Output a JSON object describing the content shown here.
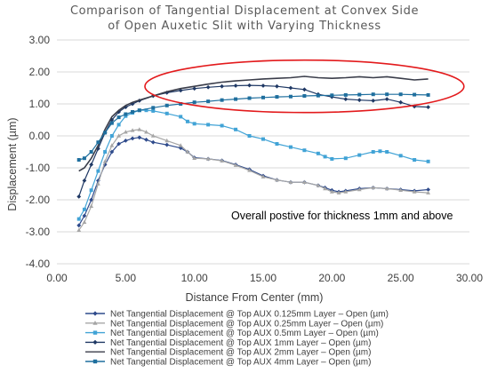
{
  "chart_data": {
    "type": "line",
    "title_lines": [
      "Comparison of Tangential Displacement at Convex Side",
      "of Open Auxetic Slit with Varying Thickness"
    ],
    "xlabel": "Distance From Center (mm)",
    "ylabel": "Displacement (µm)",
    "xlim": [
      0,
      30
    ],
    "ylim": [
      -4,
      3
    ],
    "x_ticks": [
      "0.00",
      "5.00",
      "10.00",
      "15.00",
      "20.00",
      "25.00",
      "30.00"
    ],
    "y_ticks": [
      "3.00",
      "2.00",
      "1.00",
      "0.00",
      "-1.00",
      "-2.00",
      "-3.00",
      "-4.00"
    ],
    "grid": "horizontal",
    "legend_position": "bottom",
    "annotation": "Overall postive for thickness 1mm and above",
    "highlight_ellipse": {
      "center": [
        18,
        1.55
      ],
      "x_radius": 11.6,
      "y_radius": 0.82,
      "color": "#e31a1c"
    },
    "series": [
      {
        "name": "Net Tangential Displacement @ Top AUX 0.125mm Layer – Open (µm)",
        "color": "#2f4b8c",
        "marker": "diamond",
        "points": [
          [
            1.6,
            -2.8
          ],
          [
            2.0,
            -2.5
          ],
          [
            2.5,
            -2.0
          ],
          [
            3.0,
            -1.4
          ],
          [
            3.5,
            -0.9
          ],
          [
            4.0,
            -0.5
          ],
          [
            4.5,
            -0.25
          ],
          [
            5.0,
            -0.15
          ],
          [
            5.5,
            -0.08
          ],
          [
            6.0,
            -0.05
          ],
          [
            6.5,
            -0.12
          ],
          [
            7.0,
            -0.2
          ],
          [
            8.0,
            -0.28
          ],
          [
            9.0,
            -0.38
          ],
          [
            9.5,
            -0.5
          ],
          [
            10.0,
            -0.68
          ],
          [
            11.0,
            -0.72
          ],
          [
            12.0,
            -0.77
          ],
          [
            13.0,
            -0.9
          ],
          [
            14.0,
            -1.05
          ],
          [
            15.0,
            -1.25
          ],
          [
            16.0,
            -1.38
          ],
          [
            17.0,
            -1.45
          ],
          [
            18.0,
            -1.45
          ],
          [
            19.0,
            -1.55
          ],
          [
            19.5,
            -1.62
          ],
          [
            20.0,
            -1.7
          ],
          [
            20.5,
            -1.75
          ],
          [
            21.0,
            -1.72
          ],
          [
            22.0,
            -1.65
          ],
          [
            23.0,
            -1.62
          ],
          [
            24.0,
            -1.65
          ],
          [
            25.0,
            -1.68
          ],
          [
            26.0,
            -1.72
          ],
          [
            27.0,
            -1.68
          ]
        ]
      },
      {
        "name": "Net Tangential Displacement @ Top AUX 0.25mm Layer – Open (µm)",
        "color": "#a6a6a6",
        "marker": "triangle",
        "points": [
          [
            1.6,
            -2.95
          ],
          [
            2.0,
            -2.7
          ],
          [
            2.5,
            -2.2
          ],
          [
            3.0,
            -1.5
          ],
          [
            3.5,
            -0.8
          ],
          [
            4.0,
            -0.3
          ],
          [
            4.5,
            0.0
          ],
          [
            5.0,
            0.12
          ],
          [
            5.5,
            0.17
          ],
          [
            6.0,
            0.2
          ],
          [
            6.5,
            0.12
          ],
          [
            7.0,
            0.0
          ],
          [
            8.0,
            -0.15
          ],
          [
            9.0,
            -0.3
          ],
          [
            9.5,
            -0.5
          ],
          [
            10.0,
            -0.7
          ],
          [
            11.0,
            -0.72
          ],
          [
            12.0,
            -0.78
          ],
          [
            13.0,
            -0.92
          ],
          [
            14.0,
            -1.08
          ],
          [
            15.0,
            -1.28
          ],
          [
            16.0,
            -1.38
          ],
          [
            17.0,
            -1.45
          ],
          [
            18.0,
            -1.45
          ],
          [
            19.0,
            -1.55
          ],
          [
            19.5,
            -1.65
          ],
          [
            20.0,
            -1.75
          ],
          [
            20.5,
            -1.78
          ],
          [
            21.0,
            -1.75
          ],
          [
            22.0,
            -1.68
          ],
          [
            23.0,
            -1.62
          ],
          [
            24.0,
            -1.65
          ],
          [
            25.0,
            -1.7
          ],
          [
            26.0,
            -1.75
          ],
          [
            27.0,
            -1.78
          ]
        ]
      },
      {
        "name": "Net Tangential Displacement @ Top AUX 0.5mm Layer – Open (µm)",
        "color": "#41a3d6",
        "marker": "square",
        "points": [
          [
            1.6,
            -2.6
          ],
          [
            2.0,
            -2.3
          ],
          [
            2.5,
            -1.7
          ],
          [
            3.0,
            -1.1
          ],
          [
            3.5,
            -0.5
          ],
          [
            4.0,
            0.0
          ],
          [
            4.5,
            0.35
          ],
          [
            5.0,
            0.62
          ],
          [
            5.5,
            0.72
          ],
          [
            6.0,
            0.8
          ],
          [
            6.5,
            0.8
          ],
          [
            7.0,
            0.78
          ],
          [
            8.0,
            0.7
          ],
          [
            9.0,
            0.6
          ],
          [
            9.5,
            0.45
          ],
          [
            10.0,
            0.38
          ],
          [
            11.0,
            0.35
          ],
          [
            12.0,
            0.32
          ],
          [
            13.0,
            0.2
          ],
          [
            14.0,
            0.0
          ],
          [
            15.0,
            -0.1
          ],
          [
            16.0,
            -0.25
          ],
          [
            17.0,
            -0.35
          ],
          [
            18.0,
            -0.45
          ],
          [
            19.0,
            -0.55
          ],
          [
            19.5,
            -0.65
          ],
          [
            20.0,
            -0.72
          ],
          [
            21.0,
            -0.7
          ],
          [
            22.0,
            -0.6
          ],
          [
            23.0,
            -0.5
          ],
          [
            23.5,
            -0.48
          ],
          [
            24.0,
            -0.5
          ],
          [
            25.0,
            -0.62
          ],
          [
            26.0,
            -0.75
          ],
          [
            27.0,
            -0.8
          ]
        ]
      },
      {
        "name": "Net Tangential Displacement @ Top AUX 1mm Layer – Open (µm)",
        "color": "#1f3864",
        "marker": "diamond",
        "points": [
          [
            1.6,
            -1.9
          ],
          [
            2.0,
            -1.4
          ],
          [
            2.5,
            -0.9
          ],
          [
            3.0,
            -0.4
          ],
          [
            3.5,
            0.1
          ],
          [
            4.0,
            0.5
          ],
          [
            4.5,
            0.75
          ],
          [
            5.0,
            0.9
          ],
          [
            5.5,
            1.0
          ],
          [
            6.0,
            1.1
          ],
          [
            7.0,
            1.25
          ],
          [
            8.0,
            1.35
          ],
          [
            9.0,
            1.42
          ],
          [
            10.0,
            1.48
          ],
          [
            11.0,
            1.52
          ],
          [
            12.0,
            1.55
          ],
          [
            13.0,
            1.57
          ],
          [
            14.0,
            1.58
          ],
          [
            15.0,
            1.57
          ],
          [
            16.0,
            1.55
          ],
          [
            17.0,
            1.5
          ],
          [
            18.0,
            1.45
          ],
          [
            19.0,
            1.3
          ],
          [
            20.0,
            1.22
          ],
          [
            21.0,
            1.15
          ],
          [
            22.0,
            1.12
          ],
          [
            23.0,
            1.1
          ],
          [
            24.0,
            1.15
          ],
          [
            25.0,
            1.05
          ],
          [
            26.0,
            0.92
          ],
          [
            27.0,
            0.9
          ]
        ]
      },
      {
        "name": "Net Tangential Displacement @ Top AUX 2mm Layer – Open (µm)",
        "color": "#3a3d4a",
        "marker": "none",
        "points": [
          [
            1.6,
            -1.1
          ],
          [
            2.0,
            -1.0
          ],
          [
            2.5,
            -0.7
          ],
          [
            3.0,
            -0.3
          ],
          [
            3.5,
            0.2
          ],
          [
            4.0,
            0.6
          ],
          [
            4.5,
            0.8
          ],
          [
            5.0,
            0.95
          ],
          [
            5.5,
            1.05
          ],
          [
            6.0,
            1.12
          ],
          [
            7.0,
            1.25
          ],
          [
            8.0,
            1.38
          ],
          [
            9.0,
            1.48
          ],
          [
            10.0,
            1.55
          ],
          [
            11.0,
            1.62
          ],
          [
            12.0,
            1.68
          ],
          [
            13.0,
            1.72
          ],
          [
            14.0,
            1.75
          ],
          [
            15.0,
            1.78
          ],
          [
            16.0,
            1.8
          ],
          [
            17.0,
            1.82
          ],
          [
            18.0,
            1.86
          ],
          [
            19.0,
            1.82
          ],
          [
            20.0,
            1.8
          ],
          [
            21.0,
            1.82
          ],
          [
            22.0,
            1.85
          ],
          [
            23.0,
            1.82
          ],
          [
            24.0,
            1.85
          ],
          [
            25.0,
            1.8
          ],
          [
            26.0,
            1.75
          ],
          [
            27.0,
            1.78
          ]
        ]
      },
      {
        "name": "Net Tangential Displacement @ Top AUX 4mm Layer – Open (µm)",
        "color": "#1f6f9e",
        "marker": "square",
        "points": [
          [
            1.6,
            -0.75
          ],
          [
            2.0,
            -0.7
          ],
          [
            2.5,
            -0.5
          ],
          [
            3.0,
            -0.2
          ],
          [
            3.5,
            0.1
          ],
          [
            4.0,
            0.4
          ],
          [
            4.5,
            0.58
          ],
          [
            5.0,
            0.68
          ],
          [
            5.5,
            0.75
          ],
          [
            6.0,
            0.8
          ],
          [
            7.0,
            0.88
          ],
          [
            8.0,
            0.95
          ],
          [
            9.0,
            1.0
          ],
          [
            10.0,
            1.05
          ],
          [
            11.0,
            1.08
          ],
          [
            12.0,
            1.12
          ],
          [
            13.0,
            1.15
          ],
          [
            14.0,
            1.18
          ],
          [
            15.0,
            1.2
          ],
          [
            16.0,
            1.22
          ],
          [
            17.0,
            1.23
          ],
          [
            18.0,
            1.25
          ],
          [
            19.0,
            1.26
          ],
          [
            20.0,
            1.27
          ],
          [
            21.0,
            1.28
          ],
          [
            22.0,
            1.29
          ],
          [
            23.0,
            1.3
          ],
          [
            24.0,
            1.3
          ],
          [
            25.0,
            1.3
          ],
          [
            26.0,
            1.29
          ],
          [
            27.0,
            1.28
          ]
        ]
      }
    ]
  }
}
